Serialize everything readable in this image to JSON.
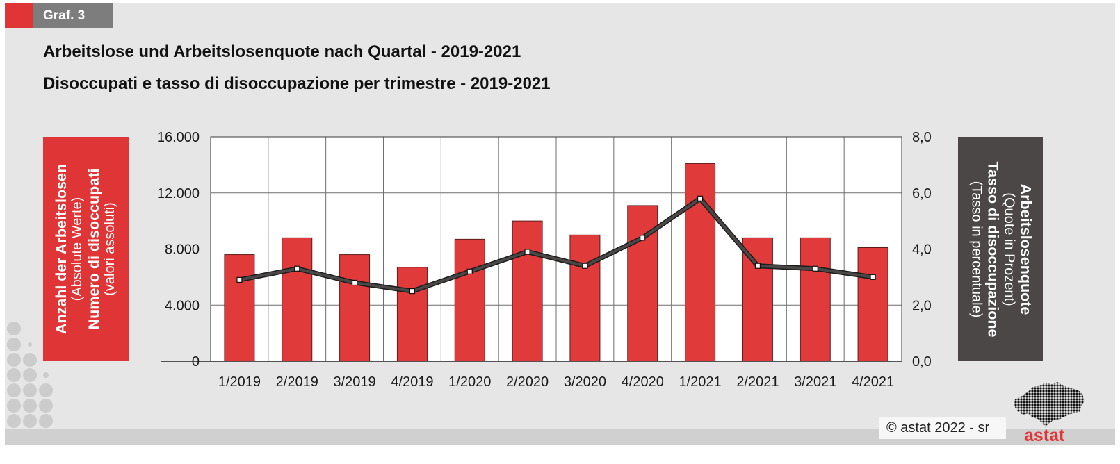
{
  "badge": {
    "label": "Graf. 3"
  },
  "colors": {
    "accent_red": "#e03536",
    "dark_gray": "#4b4747",
    "bar_fill": "#e03a3b",
    "line_stroke": "#4a4747",
    "badge_gray": "#7d7d7d"
  },
  "chart_data": {
    "type": "bar",
    "title": "Arbeitslose und Arbeitslosenquote nach Quartal - 2019-2021",
    "subtitle": "Disoccupati e tasso di disoccupazione per trimestre - 2019-2021",
    "categories": [
      "1/2019",
      "2/2019",
      "3/2019",
      "4/2019",
      "1/2020",
      "2/2020",
      "3/2020",
      "4/2020",
      "1/2021",
      "2/2021",
      "3/2021",
      "4/2021"
    ],
    "series": [
      {
        "type": "bar",
        "axis": "left",
        "values": [
          7600,
          8800,
          7600,
          6700,
          8700,
          10000,
          9000,
          11100,
          14100,
          8800,
          8800,
          8100
        ]
      },
      {
        "type": "line",
        "axis": "right",
        "values": [
          2.9,
          3.3,
          2.8,
          2.5,
          3.2,
          3.9,
          3.4,
          4.4,
          5.8,
          3.4,
          3.3,
          3.0
        ]
      }
    ],
    "y_left": {
      "label": [
        "Anzahl der Arbeitslosen",
        "(Absolute Werte)",
        "Numero di disoccupati",
        "(valori assoluti)"
      ],
      "min": 0,
      "max": 16000,
      "ticks": [
        {
          "value": 16000,
          "label": "16.000"
        },
        {
          "value": 12000,
          "label": "12.000"
        },
        {
          "value": 8000,
          "label": "8.000"
        },
        {
          "value": 4000,
          "label": "4.000"
        },
        {
          "value": 0,
          "label": "0"
        }
      ]
    },
    "y_right": {
      "label": [
        "Arbeitslosenquote",
        "(Quote in Prozent)",
        "Tasso di disoccupazione",
        "(Tasso in percentuale)"
      ],
      "min": 0,
      "max": 8,
      "ticks": [
        {
          "value": 8,
          "label": "8,0"
        },
        {
          "value": 6,
          "label": "6,0"
        },
        {
          "value": 4,
          "label": "4,0"
        },
        {
          "value": 2,
          "label": "2,0"
        },
        {
          "value": 0,
          "label": "0,0"
        }
      ]
    },
    "grid": true,
    "legend": "none"
  },
  "footer": {
    "copyright": "©  astat 2022 - sr",
    "logo_icon": "south-tyrol-dot-map-icon",
    "logo_text": "astat"
  }
}
